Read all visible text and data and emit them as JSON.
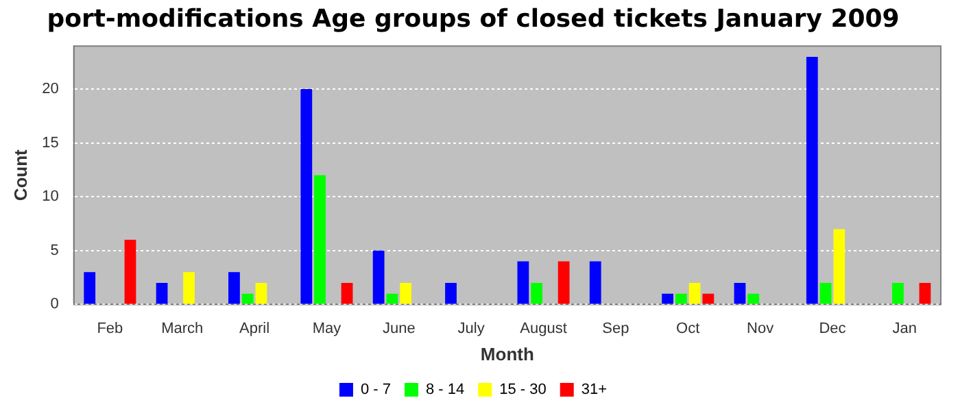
{
  "chart_data": {
    "type": "bar",
    "title": "port-modifications Age groups of closed tickets January 2009",
    "xlabel": "Month",
    "ylabel": "Count",
    "categories": [
      "Feb",
      "March",
      "April",
      "May",
      "June",
      "July",
      "August",
      "Sep",
      "Oct",
      "Nov",
      "Dec",
      "Jan"
    ],
    "series": [
      {
        "name": "0 - 7",
        "color": "#0000ff",
        "values": [
          3,
          2,
          3,
          20,
          5,
          2,
          4,
          4,
          1,
          2,
          23,
          0
        ]
      },
      {
        "name": "8 - 14",
        "color": "#00ff00",
        "values": [
          0,
          0,
          1,
          12,
          1,
          0,
          2,
          0,
          1,
          1,
          2,
          2
        ]
      },
      {
        "name": "15 - 30",
        "color": "#ffff00",
        "values": [
          0,
          3,
          2,
          0,
          2,
          0,
          0,
          0,
          2,
          0,
          7,
          0
        ]
      },
      {
        "name": "31+",
        "color": "#ff0000",
        "values": [
          6,
          0,
          0,
          2,
          0,
          0,
          4,
          0,
          1,
          0,
          0,
          2
        ]
      }
    ],
    "ylim": [
      0,
      24
    ],
    "yticks": [
      0,
      5,
      10,
      15,
      20
    ],
    "grid": "y",
    "legend": "bottom"
  }
}
